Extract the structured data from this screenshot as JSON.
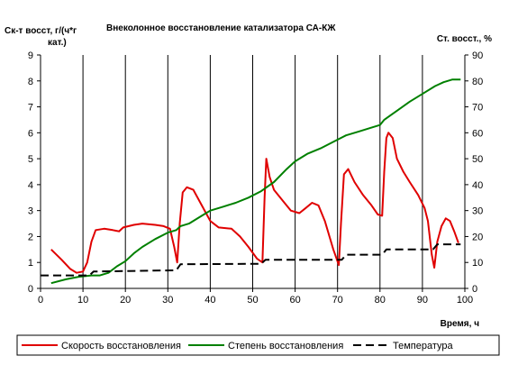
{
  "chart_data": {
    "type": "line",
    "title": "Внеколонное восстановление катализатора СА-КЖ",
    "ylabel_left_line1": "Ск-т восст, г/(ч*г",
    "ylabel_left_line2": "кат.)",
    "ylabel_right": "Ст. восст., %",
    "xlabel": "Время, ч",
    "xlim": [
      0,
      100
    ],
    "ylim_left": [
      0,
      9
    ],
    "ylim_right": [
      0,
      90
    ],
    "x_ticks": [
      "0",
      "10",
      "20",
      "30",
      "40",
      "50",
      "60",
      "70",
      "80",
      "90",
      "100"
    ],
    "y_left_ticks": [
      "0",
      "1",
      "2",
      "3",
      "4",
      "5",
      "6",
      "7",
      "8",
      "9"
    ],
    "y_right_ticks": [
      "0",
      "10",
      "20",
      "30",
      "40",
      "50",
      "60",
      "70",
      "80",
      "90"
    ],
    "grid": "vertical",
    "legend_position": "bottom",
    "colors": {
      "red": "#e00000",
      "green": "#008000",
      "black": "#000000",
      "grid": "#000000"
    },
    "series": [
      {
        "name": "Скорость восстановления",
        "axis": "left",
        "color": "#e00000",
        "style": "solid",
        "points": [
          [
            2.5,
            1.5
          ],
          [
            5,
            1.1
          ],
          [
            7,
            0.75
          ],
          [
            8.5,
            0.6
          ],
          [
            10,
            0.65
          ],
          [
            11,
            1.0
          ],
          [
            12,
            1.8
          ],
          [
            13,
            2.25
          ],
          [
            15,
            2.3
          ],
          [
            17,
            2.25
          ],
          [
            18.5,
            2.2
          ],
          [
            19.5,
            2.35
          ],
          [
            22,
            2.45
          ],
          [
            24,
            2.5
          ],
          [
            27,
            2.45
          ],
          [
            29,
            2.4
          ],
          [
            30.5,
            2.3
          ],
          [
            31.5,
            1.6
          ],
          [
            32.2,
            1.0
          ],
          [
            32.8,
            2.5
          ],
          [
            33.5,
            3.7
          ],
          [
            34.5,
            3.9
          ],
          [
            36,
            3.8
          ],
          [
            38,
            3.2
          ],
          [
            40,
            2.6
          ],
          [
            42,
            2.35
          ],
          [
            45,
            2.3
          ],
          [
            47,
            2.0
          ],
          [
            49,
            1.6
          ],
          [
            51,
            1.15
          ],
          [
            52.3,
            1.0
          ],
          [
            52.8,
            3.5
          ],
          [
            53.2,
            5.0
          ],
          [
            54,
            4.3
          ],
          [
            55,
            3.8
          ],
          [
            57,
            3.4
          ],
          [
            59,
            3.0
          ],
          [
            61,
            2.9
          ],
          [
            62.5,
            3.1
          ],
          [
            64,
            3.3
          ],
          [
            65.5,
            3.2
          ],
          [
            67,
            2.6
          ],
          [
            69,
            1.5
          ],
          [
            70.3,
            0.9
          ],
          [
            70.8,
            2.5
          ],
          [
            71.5,
            4.4
          ],
          [
            72.5,
            4.6
          ],
          [
            74,
            4.1
          ],
          [
            76,
            3.6
          ],
          [
            78,
            3.2
          ],
          [
            79.5,
            2.85
          ],
          [
            80.5,
            2.8
          ],
          [
            81,
            4.5
          ],
          [
            81.5,
            5.8
          ],
          [
            82,
            6.0
          ],
          [
            83,
            5.8
          ],
          [
            84,
            5.0
          ],
          [
            85.5,
            4.5
          ],
          [
            87,
            4.1
          ],
          [
            89,
            3.6
          ],
          [
            90.5,
            3.1
          ],
          [
            91.3,
            2.6
          ],
          [
            92.2,
            1.3
          ],
          [
            92.8,
            0.8
          ],
          [
            93.5,
            1.8
          ],
          [
            94.5,
            2.4
          ],
          [
            95.5,
            2.7
          ],
          [
            96.5,
            2.6
          ],
          [
            97.5,
            2.2
          ],
          [
            98.5,
            1.75
          ]
        ]
      },
      {
        "name": "Степень восстановления",
        "axis": "right",
        "color": "#008000",
        "style": "solid",
        "points": [
          [
            2.5,
            2
          ],
          [
            6,
            3.5
          ],
          [
            9,
            4.5
          ],
          [
            12,
            5
          ],
          [
            14,
            5
          ],
          [
            16,
            6
          ],
          [
            18,
            8.5
          ],
          [
            20,
            10.5
          ],
          [
            22,
            13.5
          ],
          [
            24,
            16
          ],
          [
            27,
            19
          ],
          [
            30,
            21.5
          ],
          [
            32,
            22.5
          ],
          [
            33,
            24
          ],
          [
            35,
            25
          ],
          [
            38,
            28
          ],
          [
            40,
            30
          ],
          [
            43,
            31.5
          ],
          [
            46,
            33
          ],
          [
            49,
            35
          ],
          [
            52,
            37.5
          ],
          [
            55,
            41
          ],
          [
            58,
            46
          ],
          [
            60,
            49
          ],
          [
            63,
            52
          ],
          [
            66,
            54
          ],
          [
            69,
            56.5
          ],
          [
            72,
            59
          ],
          [
            75,
            60.5
          ],
          [
            78,
            62
          ],
          [
            80,
            63
          ],
          [
            81,
            65
          ],
          [
            84,
            68.5
          ],
          [
            87,
            72
          ],
          [
            90,
            75
          ],
          [
            93,
            78
          ],
          [
            95,
            79.5
          ],
          [
            97,
            80.5
          ],
          [
            99,
            80.5
          ]
        ]
      },
      {
        "name": "Температура",
        "axis": "left",
        "color": "#000000",
        "style": "dashed",
        "points": [
          [
            0,
            0.5
          ],
          [
            11.5,
            0.5
          ],
          [
            12.5,
            0.65
          ],
          [
            32,
            0.7
          ],
          [
            33,
            0.93
          ],
          [
            52,
            0.95
          ],
          [
            53,
            1.1
          ],
          [
            71,
            1.1
          ],
          [
            72,
            1.3
          ],
          [
            80.5,
            1.3
          ],
          [
            81.5,
            1.5
          ],
          [
            92.5,
            1.5
          ],
          [
            93.5,
            1.7
          ],
          [
            99,
            1.7
          ]
        ]
      }
    ]
  }
}
